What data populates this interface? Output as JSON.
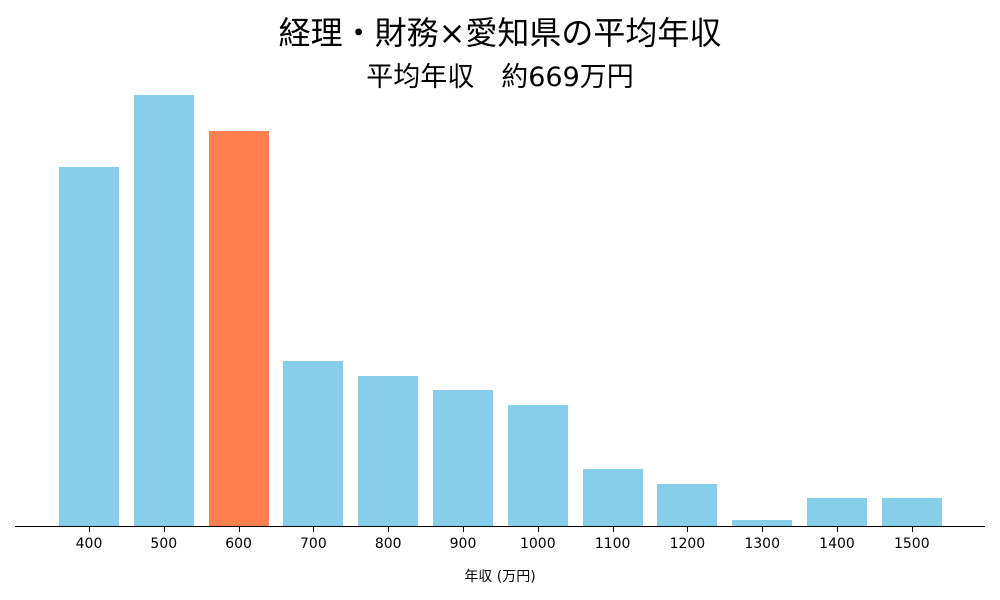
{
  "chart_data": {
    "type": "bar",
    "title": "経理・財務×愛知県の平均年収",
    "subtitle": "平均年収　約669万円",
    "xlabel": "年収 (万円)",
    "ylabel": "",
    "categories": [
      "400",
      "500",
      "600",
      "700",
      "800",
      "900",
      "1000",
      "1100",
      "1200",
      "1300",
      "1400",
      "1500"
    ],
    "values": [
      50,
      60,
      55,
      23,
      21,
      19,
      17,
      8,
      6,
      1,
      4,
      4
    ],
    "highlight_category": "600",
    "colors": {
      "default": "#87ceeb",
      "highlight": "#ff7f50"
    },
    "grid": false,
    "legend": null
  },
  "labels": {
    "title": "経理・財務×愛知県の平均年収",
    "subtitle": "平均年収　約669万円",
    "xlabel": "年収 (万円)"
  }
}
